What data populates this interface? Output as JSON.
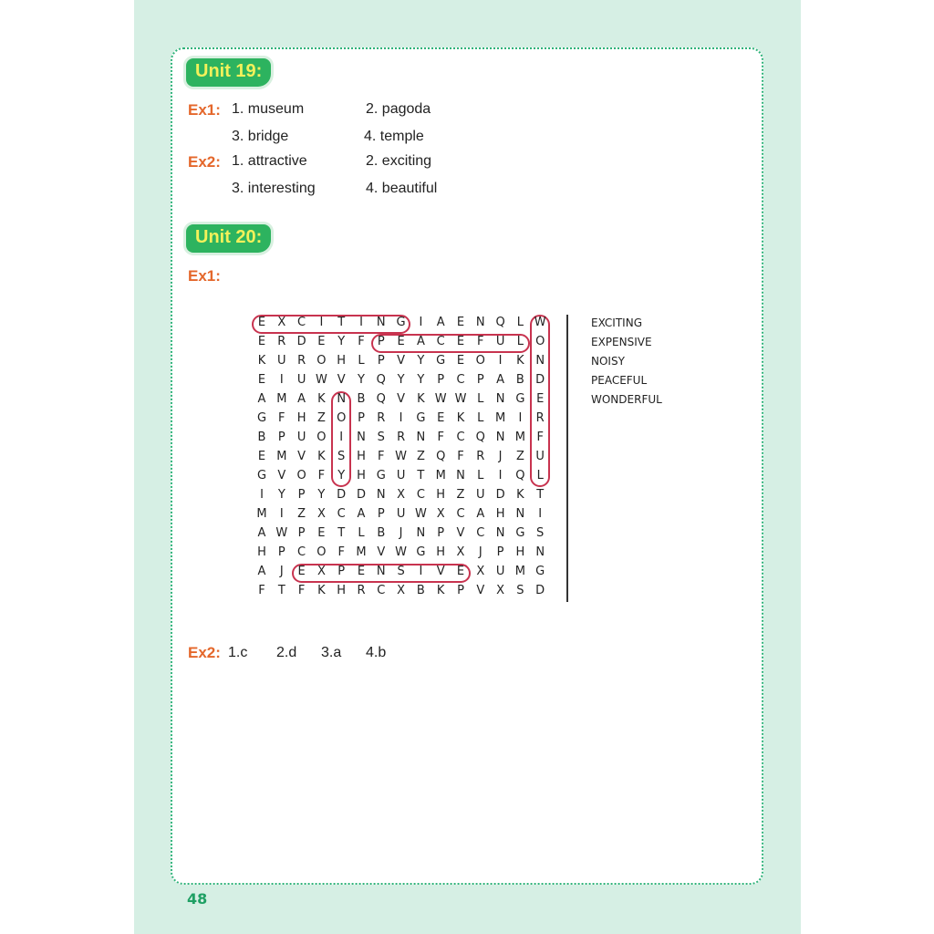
{
  "unit19": {
    "title": "Unit 19:",
    "ex1_label": "Ex1:",
    "ex1": [
      "1. museum",
      "2. pagoda",
      "3. bridge",
      "4. temple"
    ],
    "ex2_label": "Ex2:",
    "ex2": [
      "1. attractive",
      "2. exciting",
      "3. interesting",
      "4. beautiful"
    ]
  },
  "unit20": {
    "title": "Unit 20:",
    "ex1_label": "Ex1:",
    "ex2_label": "Ex2:",
    "ex2": [
      "1.c",
      "2.d",
      "3.a",
      "4.b"
    ],
    "wordsearch": {
      "rows": [
        "EXCITINGIAENQLW",
        "ERDEYFPEACEFULO",
        "KUROHLPVYGEOIKN",
        "EIUWVYQYYPCPABD",
        "AMAKNBQVKWWLNGE",
        "GFHZOPRIGEKLMIR",
        "BPUOINSRNFCQNMF",
        "EMVKSHFWZQFRJZU",
        "GVOFYHGUTMNLIQL",
        "IYPYDDNXCHZUDKT",
        "MIZXCAPUWXCAHNI",
        "AWPETLBJNPVCNGS",
        "HPCOFMVWGHXJPHN",
        "AJEXPENSIVEXUMG",
        "FTFKHRCXBKPVXSD"
      ],
      "words": [
        "EXCITING",
        "EXPENSIVE",
        "NOISY",
        "PEACEFUL",
        "WONDERFUL"
      ],
      "highlights": [
        {
          "word": "EXCITING",
          "row": 0,
          "col": 0,
          "dir": "h",
          "len": 8
        },
        {
          "word": "PEACEFUL",
          "row": 1,
          "col": 6,
          "dir": "h",
          "len": 8
        },
        {
          "word": "WONDERFUL",
          "row": 0,
          "col": 14,
          "dir": "v",
          "len": 9
        },
        {
          "word": "NOISY",
          "row": 4,
          "col": 4,
          "dir": "v",
          "len": 5
        },
        {
          "word": "EXPENSIVE",
          "row": 13,
          "col": 2,
          "dir": "h",
          "len": 9
        }
      ],
      "highlight_color": "#c8334f"
    }
  },
  "page_number": "48"
}
